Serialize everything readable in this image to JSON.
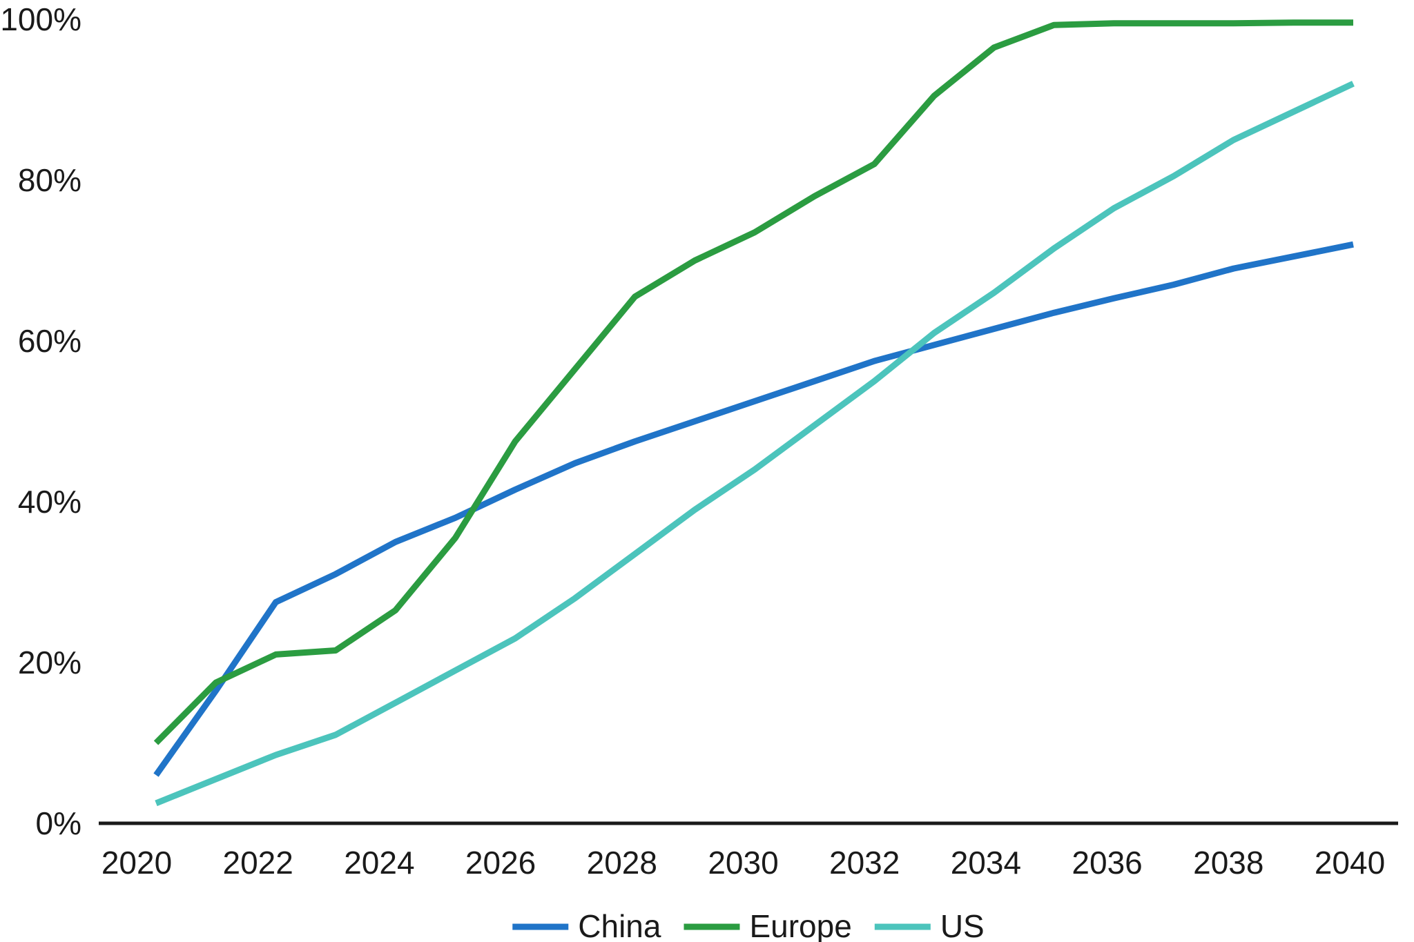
{
  "chart_data": {
    "type": "line",
    "title": "",
    "xlabel": "",
    "ylabel": "",
    "xlim": [
      2020,
      2040
    ],
    "ylim": [
      0,
      100
    ],
    "grid": false,
    "legend_position": "bottom-center",
    "x": [
      2020,
      2021,
      2022,
      2023,
      2024,
      2025,
      2026,
      2027,
      2028,
      2029,
      2030,
      2031,
      2032,
      2033,
      2034,
      2035,
      2036,
      2037,
      2038,
      2039,
      2040
    ],
    "x_tick_values": [
      2020,
      2022,
      2024,
      2026,
      2028,
      2030,
      2032,
      2034,
      2036,
      2038,
      2040
    ],
    "x_tick_labels": [
      "2020",
      "2022",
      "2024",
      "2026",
      "2028",
      "2030",
      "2032",
      "2034",
      "2036",
      "2038",
      "2040"
    ],
    "y_tick_values": [
      0,
      20,
      40,
      60,
      80,
      100
    ],
    "y_tick_labels": [
      "0%",
      "20%",
      "40%",
      "60%",
      "80%",
      "100%"
    ],
    "series": [
      {
        "name": "China",
        "color": "#2074c8",
        "values": [
          6,
          16.5,
          27.5,
          31,
          35,
          38,
          41.5,
          44.8,
          47.5,
          50,
          52.5,
          55,
          57.5,
          59.5,
          61.5,
          63.5,
          65.3,
          67,
          69,
          70.5,
          72
        ]
      },
      {
        "name": "Europe",
        "color": "#2b9c41",
        "values": [
          10,
          17.5,
          21,
          21.5,
          26.5,
          35.5,
          47.5,
          56.5,
          65.5,
          70,
          73.5,
          78,
          82,
          90.5,
          96.5,
          99.3,
          99.5,
          99.5,
          99.5,
          99.6,
          99.6
        ]
      },
      {
        "name": "US",
        "color": "#4cc4bc",
        "values": [
          2.5,
          5.5,
          8.5,
          11,
          15,
          19,
          23,
          28,
          33.5,
          39,
          44,
          49.5,
          55,
          61,
          66,
          71.5,
          76.5,
          80.5,
          85,
          88.5,
          92
        ]
      }
    ]
  },
  "colors": {
    "axis": "#1a1a1a",
    "text": "#1a1a1a",
    "background": "#ffffff"
  }
}
